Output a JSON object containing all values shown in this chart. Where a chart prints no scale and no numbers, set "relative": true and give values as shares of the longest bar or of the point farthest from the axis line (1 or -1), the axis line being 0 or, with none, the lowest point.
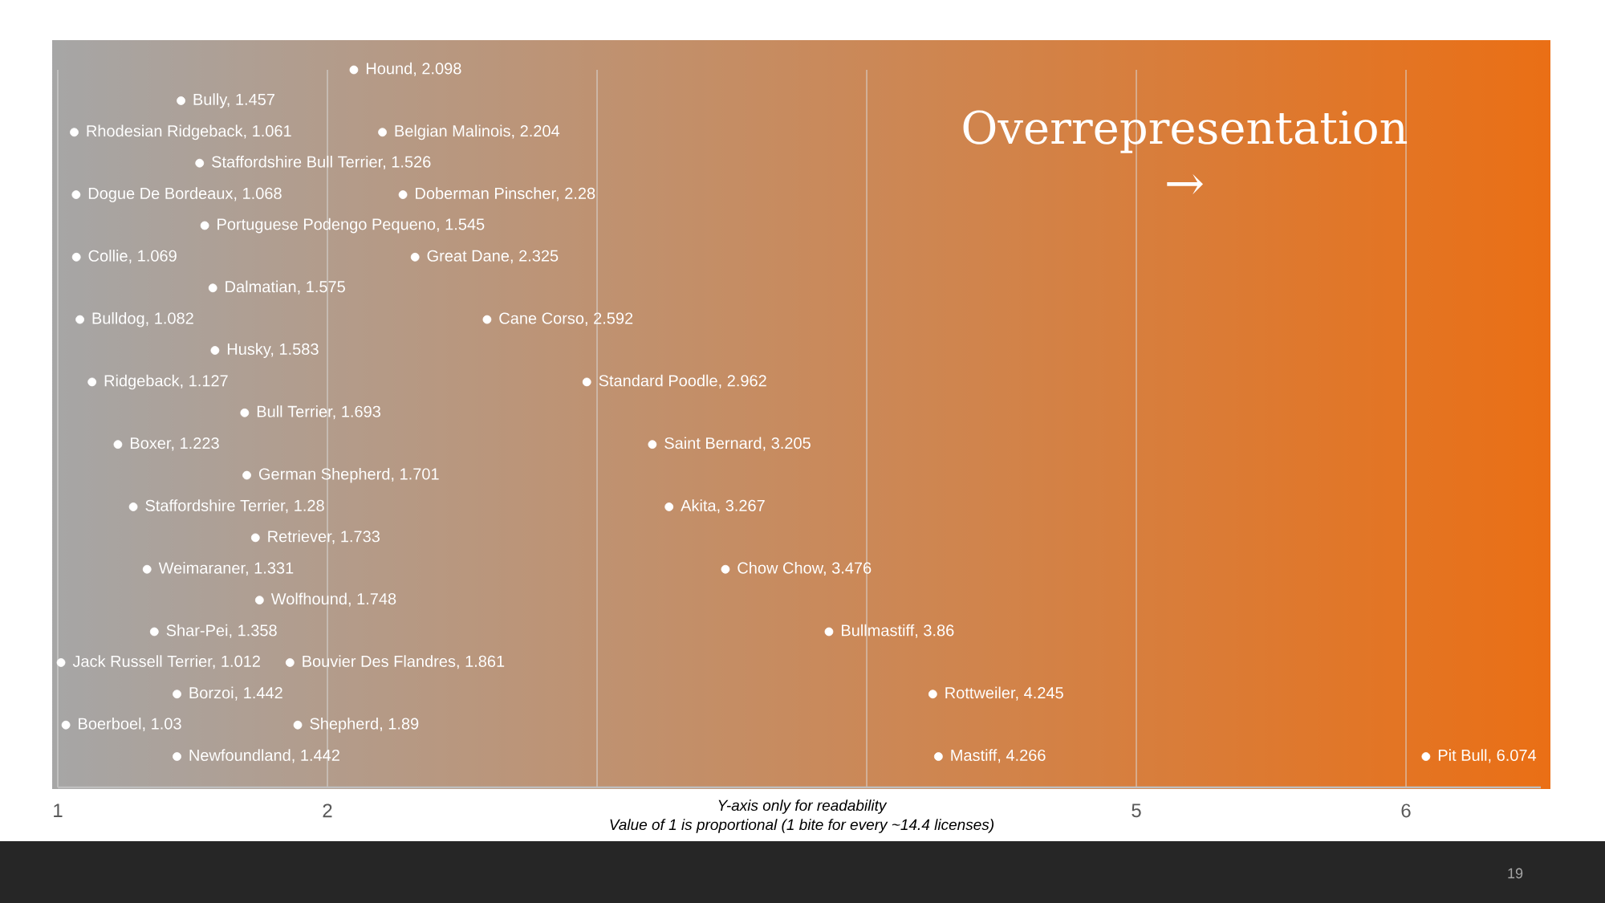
{
  "chart_data": {
    "type": "scatter",
    "title": "Overrepresentation",
    "annotations": [
      "→",
      "Y-axis only for readability",
      "Value of 1 is proportional (1 bite for every ~14.4 licenses)",
      "19",
      {
        "text": "Hound, 2.098",
        "x": 2.098,
        "y": 1
      },
      {
        "text": "Bully, 1.457",
        "x": 1.457,
        "y": 0.957
      },
      {
        "text": "Rhodesian Ridgeback, 1.061",
        "x": 1.061,
        "y": 0.913
      },
      {
        "text": "Belgian Malinois, 2.204",
        "x": 2.204,
        "y": 0.913
      },
      {
        "text": "Staffordshire Bull Terrier, 1.526",
        "x": 1.526,
        "y": 0.87
      },
      {
        "text": "Dogue De Bordeaux, 1.068",
        "x": 1.068,
        "y": 0.826
      },
      {
        "text": "Doberman Pinscher, 2.28",
        "x": 2.28,
        "y": 0.826
      },
      {
        "text": "Portuguese Podengo Pequeno, 1.545",
        "x": 1.545,
        "y": 0.783
      },
      {
        "text": "Collie, 1.069",
        "x": 1.069,
        "y": 0.739
      },
      {
        "text": "Great Dane, 2.325",
        "x": 2.325,
        "y": 0.739
      },
      {
        "text": "Dalmatian, 1.575",
        "x": 1.575,
        "y": 0.696
      },
      {
        "text": "Bulldog, 1.082",
        "x": 1.082,
        "y": 0.652
      },
      {
        "text": "Cane Corso, 2.592",
        "x": 2.592,
        "y": 0.652
      },
      {
        "text": "Husky, 1.583",
        "x": 1.583,
        "y": 0.609
      },
      {
        "text": "Ridgeback, 1.127",
        "x": 1.127,
        "y": 0.565
      },
      {
        "text": "Standard Poodle, 2.962",
        "x": 2.962,
        "y": 0.565
      },
      {
        "text": "Bull Terrier, 1.693",
        "x": 1.693,
        "y": 0.522
      },
      {
        "text": "Boxer, 1.223",
        "x": 1.223,
        "y": 0.478
      },
      {
        "text": "Saint Bernard, 3.205",
        "x": 3.205,
        "y": 0.478
      },
      {
        "text": "German Shepherd, 1.701",
        "x": 1.701,
        "y": 0.435
      },
      {
        "text": "Staffordshire Terrier, 1.28",
        "x": 1.28,
        "y": 0.391
      },
      {
        "text": "Akita, 3.267",
        "x": 3.267,
        "y": 0.391
      },
      {
        "text": "Retriever, 1.733",
        "x": 1.733,
        "y": 0.348
      },
      {
        "text": "Weimaraner, 1.331",
        "x": 1.331,
        "y": 0.304
      },
      {
        "text": "Chow Chow, 3.476",
        "x": 3.476,
        "y": 0.304
      },
      {
        "text": "Wolfhound, 1.748",
        "x": 1.748,
        "y": 0.261
      },
      {
        "text": "Shar-Pei, 1.358",
        "x": 1.358,
        "y": 0.217
      },
      {
        "text": "Bullmastiff, 3.86",
        "x": 3.86,
        "y": 0.217
      },
      {
        "text": "Jack Russell Terrier, 1.012",
        "x": 1.012,
        "y": 0.174
      },
      {
        "text": "Bouvier Des Flandres, 1.861",
        "x": 1.861,
        "y": 0.174
      },
      {
        "text": "Borzoi, 1.442",
        "x": 1.442,
        "y": 0.13
      },
      {
        "text": "Rottweiler, 4.245",
        "x": 4.245,
        "y": 0.13
      },
      {
        "text": "Boerboel, 1.03",
        "x": 1.03,
        "y": 0.087
      },
      {
        "text": "Shepherd, 1.89",
        "x": 1.89,
        "y": 0.087
      },
      {
        "text": "Newfoundland, 1.442",
        "x": 1.442,
        "y": 0.043
      },
      {
        "text": "Mastiff, 4.266",
        "x": 4.266,
        "y": 0.043
      },
      {
        "text": "Pit Bull, 6.074",
        "x": 6.074,
        "y": 0.043
      }
    ],
    "x": [
      2.098,
      1.457,
      1.061,
      2.204,
      1.526,
      1.068,
      2.28,
      1.545,
      1.069,
      2.325,
      1.575,
      1.082,
      2.592,
      1.583,
      1.127,
      2.962,
      1.693,
      1.223,
      3.205,
      1.701,
      1.28,
      3.267,
      1.733,
      1.331,
      3.476,
      1.748,
      1.358,
      3.86,
      1.012,
      1.861,
      1.442,
      4.245,
      1.03,
      1.89,
      1.442,
      4.266,
      6.074
    ],
    "values": [
      1,
      0.957,
      0.913,
      0.913,
      0.87,
      0.826,
      0.826,
      0.783,
      0.739,
      0.739,
      0.696,
      0.652,
      0.652,
      0.609,
      0.565,
      0.565,
      0.522,
      0.478,
      0.478,
      0.435,
      0.391,
      0.391,
      0.348,
      0.304,
      0.304,
      0.261,
      0.217,
      0.217,
      0.174,
      0.174,
      0.13,
      0.13,
      0.087,
      0.087,
      0.043,
      0.043,
      0.043
    ],
    "color": "#ffffff",
    "marker": "circle",
    "relative": true,
    "xlim": [
      1,
      6.5
    ],
    "xticks": [
      1,
      2,
      {
        "value": 3,
        "label": null
      },
      {
        "value": 4,
        "label": null
      },
      5,
      6
    ],
    "grid": "x"
  }
}
